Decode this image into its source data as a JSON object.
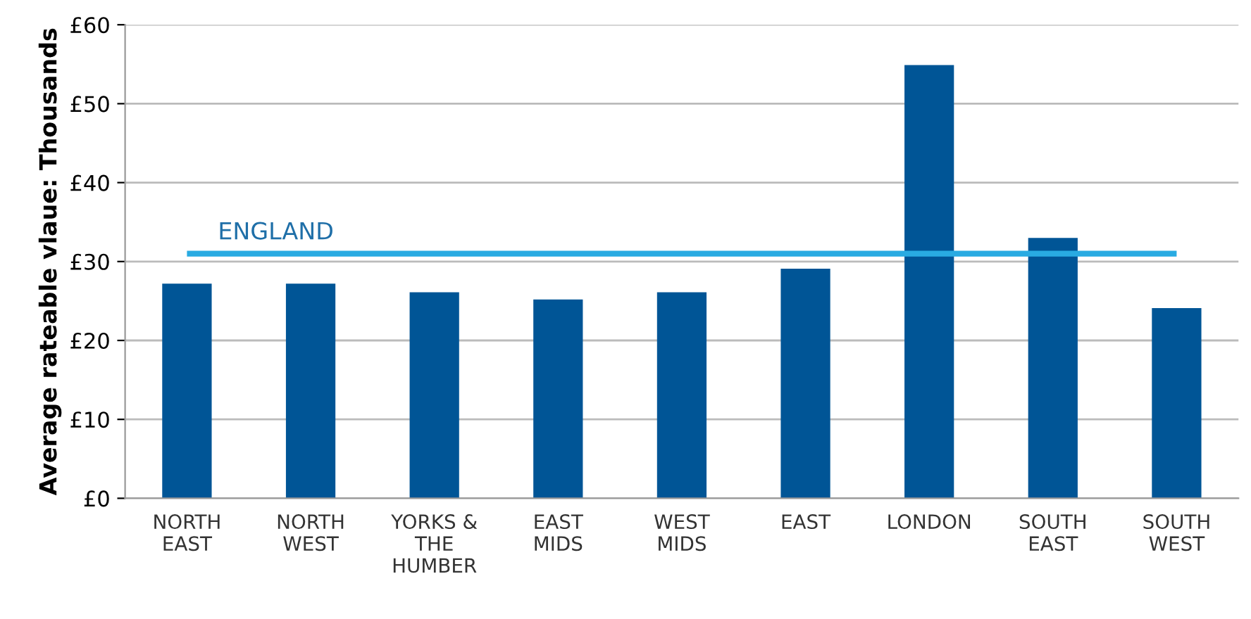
{
  "chart_data": {
    "type": "bar",
    "ylabel": "Average rateable vlaue: Thousands",
    "categories": [
      "NORTH\nEAST",
      "NORTH\nWEST",
      "YORKS &\nTHE\nHUMBER",
      "EAST\nMIDS",
      "WEST\nMIDS",
      "EAST",
      "LONDON",
      "SOUTH\nEAST",
      "SOUTH\nWEST"
    ],
    "values": [
      27.2,
      27.2,
      26.1,
      25.2,
      26.1,
      29.1,
      54.9,
      33,
      24.1
    ],
    "color": "#005596",
    "ylim": [
      0,
      60
    ],
    "yticks": [
      {
        "value": 0,
        "label": "£0"
      },
      {
        "value": 10,
        "label": "£10"
      },
      {
        "value": 20,
        "label": "£20"
      },
      {
        "value": 30,
        "label": "£30"
      },
      {
        "value": 40,
        "label": "£40"
      },
      {
        "value": 50,
        "label": "£50"
      },
      {
        "value": 60,
        "label": "£60"
      }
    ],
    "ref_lines": [
      {
        "axis": "y",
        "value": 31,
        "label": "ENGLAND",
        "color": "#29abe2"
      }
    ],
    "grid": "y",
    "legend": false
  }
}
